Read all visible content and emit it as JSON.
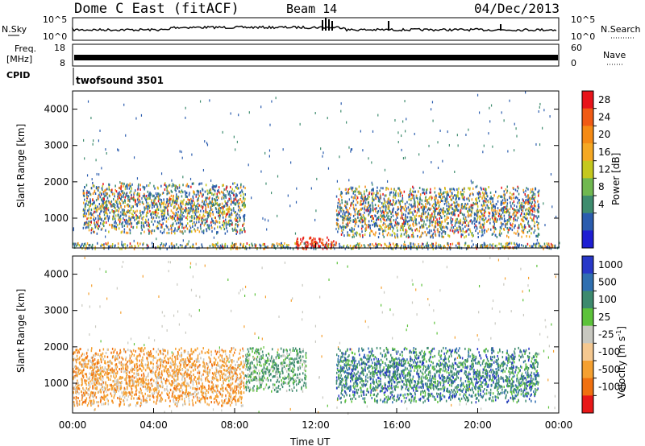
{
  "header": {
    "station": "Dome C East (fitACF)",
    "beam": "Beam 14",
    "date": "04/Dec/2013"
  },
  "noise_panel": {
    "left_label": "N.Sky",
    "right_label": "N.Search",
    "left_ticks": [
      "10^5",
      "10^0"
    ],
    "right_ticks": [
      "10^5",
      "10^0"
    ]
  },
  "freq_panel": {
    "left_label_line1": "Freq.",
    "left_label_line2": "[MHz]",
    "right_label": "Nave",
    "left_ticks": [
      "18",
      "8"
    ],
    "right_ticks": [
      "60",
      "0"
    ]
  },
  "cpid": {
    "label": "CPID",
    "program": "twofsound 3501"
  },
  "chart_data": [
    {
      "type": "heatmap",
      "name": "power",
      "ylabel": "Slant Range [km]",
      "ylim": [
        180,
        4500
      ],
      "yticks": [
        "1000",
        "2000",
        "3000",
        "4000"
      ],
      "colorbar": {
        "title": "Power [dB]",
        "ticks": [
          "28",
          "24",
          "20",
          "16",
          "12",
          "8",
          "4"
        ],
        "colors": [
          "#e8141a",
          "#f05a14",
          "#f58a14",
          "#f5a823",
          "#c5c81e",
          "#70b850",
          "#3e8c6e",
          "#2a5cae",
          "#1e1ed2"
        ]
      },
      "features": [
        {
          "desc_time": "00:00-24:00",
          "range_km": [
            180,
            350
          ],
          "power_db": 12
        },
        {
          "desc_time": "00:30-08:30",
          "range_km": [
            600,
            2000
          ],
          "power_db": 16
        },
        {
          "desc_time": "11:00-13:00",
          "range_km": [
            180,
            500
          ],
          "power_db": 28
        },
        {
          "desc_time": "13:00-23:00",
          "range_km": [
            500,
            1900
          ],
          "power_db": 16
        }
      ]
    },
    {
      "type": "heatmap",
      "name": "velocity",
      "ylabel": "Slant Range [km]",
      "xlabel": "Time UT",
      "xticks": [
        "00:00",
        "04:00",
        "08:00",
        "12:00",
        "16:00",
        "20:00",
        "00:00"
      ],
      "ylim": [
        180,
        4500
      ],
      "yticks": [
        "1000",
        "2000",
        "3000",
        "4000"
      ],
      "colorbar": {
        "title": "Velocity [m s",
        "title_sup": "-1",
        "title_end": "]",
        "ticks": [
          "1000",
          "500",
          "100",
          "25",
          "-25",
          "-100",
          "-500",
          "-1000"
        ],
        "colors": [
          "#2838c8",
          "#2f6fb0",
          "#3d8a6e",
          "#5cc23a",
          "#c8c8c0",
          "#f5c890",
          "#f5a030",
          "#f07010",
          "#e81818"
        ]
      },
      "features": [
        {
          "desc_time": "00:00-08:30",
          "range_km": [
            400,
            2000
          ],
          "velocity_ms": -300
        },
        {
          "desc_time": "08:30-11:30",
          "range_km": [
            800,
            2000
          ],
          "velocity_ms": 150
        },
        {
          "desc_time": "13:00-23:00",
          "range_km": [
            500,
            2000
          ],
          "velocity_ms": 400
        }
      ]
    }
  ]
}
